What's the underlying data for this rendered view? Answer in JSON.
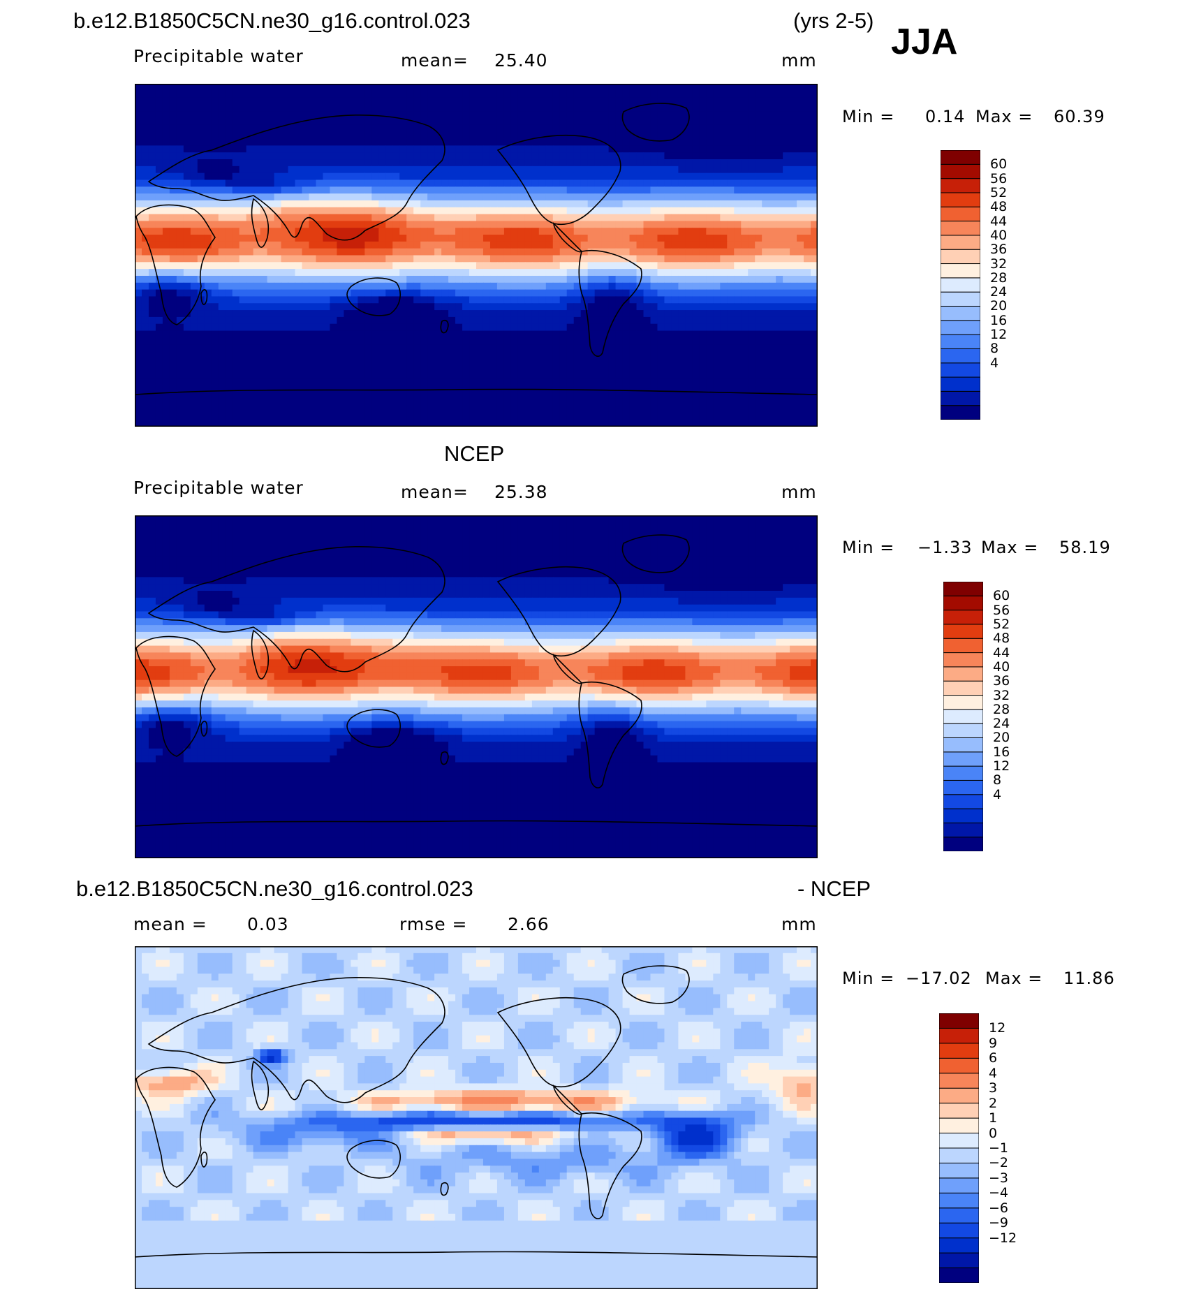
{
  "colors": {
    "abs_scale": [
      "#00007f",
      "#0017a8",
      "#0030cc",
      "#1349e3",
      "#2b66f0",
      "#4a84f7",
      "#6fa0fb",
      "#97bdfd",
      "#bcd6fe",
      "#ddebfe",
      "#fff0e0",
      "#ffd0b5",
      "#fcab85",
      "#f7855a",
      "#f06131",
      "#e23d10",
      "#c72008",
      "#a30b00",
      "#7f0000"
    ],
    "diff_scale": [
      "#00007f",
      "#0017a8",
      "#0030cc",
      "#1349e3",
      "#2b66f0",
      "#4a84f7",
      "#6fa0fb",
      "#97bdfd",
      "#bcd6fe",
      "#ddebfe",
      "#fff0e0",
      "#ffd0b5",
      "#fcab85",
      "#f7855a",
      "#f06131",
      "#e23d10",
      "#c72008",
      "#7f0000"
    ],
    "land_outline": "#000000"
  },
  "header": {
    "case_name": "b.e12.B1850C5CN.ne30_g16.control.023",
    "years": "(yrs 2-5)",
    "season": "JJA"
  },
  "panels": [
    {
      "title": "",
      "variable": "Precipitable water",
      "stat_label": "mean=",
      "stat_value": "25.40",
      "units": "mm",
      "min_label": "Min =",
      "min_value": "0.14",
      "max_label": "Max =",
      "max_value": "60.39",
      "colorbar_labels": [
        "60",
        "56",
        "52",
        "48",
        "44",
        "40",
        "36",
        "32",
        "28",
        "24",
        "20",
        "16",
        "12",
        "8",
        "4"
      ]
    },
    {
      "title": "NCEP",
      "variable": "Precipitable water",
      "stat_label": "mean=",
      "stat_value": "25.38",
      "units": "mm",
      "min_label": "Min =",
      "min_value": "−1.33",
      "max_label": "Max =",
      "max_value": "58.19",
      "colorbar_labels": [
        "60",
        "56",
        "52",
        "48",
        "44",
        "40",
        "36",
        "32",
        "28",
        "24",
        "20",
        "16",
        "12",
        "8",
        "4"
      ]
    },
    {
      "title_left": "b.e12.B1850C5CN.ne30_g16.control.023",
      "title_right": "- NCEP",
      "stat_label": "mean =",
      "stat_value": "0.03",
      "rmse_label": "rmse =",
      "rmse_value": "2.66",
      "units": "mm",
      "min_label": "Min =",
      "min_value": "−17.02",
      "max_label": "Max =",
      "max_value": "11.86",
      "colorbar_labels": [
        "12",
        "9",
        "6",
        "4",
        "3",
        "2",
        "1",
        "0",
        "−1",
        "−2",
        "−3",
        "−4",
        "−6",
        "−9",
        "−12"
      ]
    }
  ]
}
